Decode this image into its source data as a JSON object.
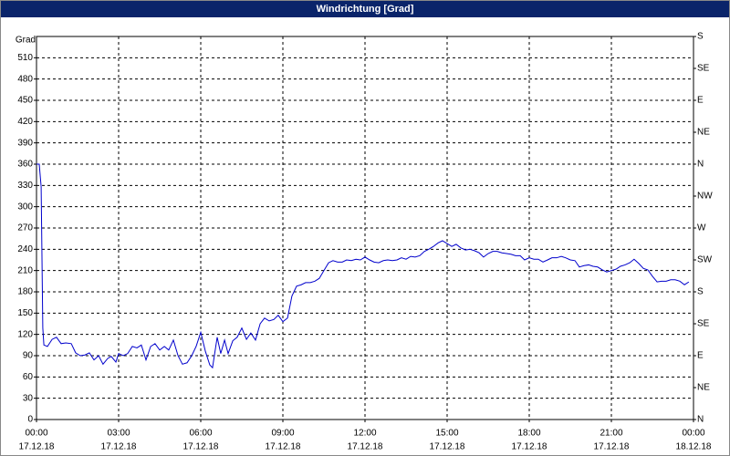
{
  "window_title": "Windrichtung [Grad]",
  "chart_data": {
    "type": "line",
    "y_label": "Grad",
    "xlim": [
      0,
      24
    ],
    "xticks": [
      {
        "value": 0,
        "label": "00:00",
        "date": "17.12.18"
      },
      {
        "value": 3,
        "label": "03:00",
        "date": "17.12.18"
      },
      {
        "value": 6,
        "label": "06:00",
        "date": "17.12.18"
      },
      {
        "value": 9,
        "label": "09:00",
        "date": "17.12.18"
      },
      {
        "value": 12,
        "label": "12:00",
        "date": "17.12.18"
      },
      {
        "value": 15,
        "label": "15:00",
        "date": "17.12.18"
      },
      {
        "value": 18,
        "label": "18:00",
        "date": "17.12.18"
      },
      {
        "value": 21,
        "label": "21:00",
        "date": "17.12.18"
      },
      {
        "value": 24,
        "label": "00:00",
        "date": "18.12.18"
      }
    ],
    "ylim": [
      0,
      540
    ],
    "yticks": [
      0,
      30,
      60,
      90,
      120,
      150,
      180,
      210,
      240,
      270,
      300,
      330,
      360,
      390,
      420,
      450,
      480,
      510
    ],
    "y2lim": [
      0,
      540
    ],
    "y2ticks": [
      {
        "value": 0,
        "label": "N"
      },
      {
        "value": 45,
        "label": "NE"
      },
      {
        "value": 90,
        "label": "E"
      },
      {
        "value": 135,
        "label": "SE"
      },
      {
        "value": 180,
        "label": "S"
      },
      {
        "value": 225,
        "label": "SW"
      },
      {
        "value": 270,
        "label": "W"
      },
      {
        "value": 315,
        "label": "NW"
      },
      {
        "value": 360,
        "label": "N"
      },
      {
        "value": 405,
        "label": "NE"
      },
      {
        "value": 450,
        "label": "E"
      },
      {
        "value": 495,
        "label": "SE"
      },
      {
        "value": 540,
        "label": "S"
      }
    ],
    "grid": true,
    "x": [
      0,
      0.1,
      0.17,
      0.23,
      0.27,
      0.4,
      0.57,
      0.73,
      0.9,
      1.07,
      1.27,
      1.43,
      1.6,
      1.77,
      1.93,
      2.1,
      2.27,
      2.43,
      2.6,
      2.73,
      2.9,
      3,
      3.17,
      3.33,
      3.5,
      3.67,
      3.83,
      4,
      4.17,
      4.33,
      4.5,
      4.67,
      4.83,
      5,
      5.17,
      5.33,
      5.5,
      5.67,
      5.83,
      6,
      6.17,
      6.33,
      6.43,
      6.6,
      6.73,
      6.87,
      7,
      7.17,
      7.33,
      7.5,
      7.67,
      7.83,
      8,
      8.17,
      8.33,
      8.5,
      8.67,
      8.83,
      9,
      9.17,
      9.33,
      9.5,
      9.67,
      9.83,
      10,
      10.17,
      10.33,
      10.5,
      10.67,
      10.83,
      11,
      11.17,
      11.33,
      11.5,
      11.67,
      11.83,
      12,
      12.17,
      12.33,
      12.5,
      12.67,
      12.83,
      13,
      13.17,
      13.33,
      13.5,
      13.67,
      13.83,
      14,
      14.17,
      14.33,
      14.5,
      14.67,
      14.83,
      15,
      15.17,
      15.33,
      15.5,
      15.67,
      15.83,
      16,
      16.17,
      16.33,
      16.5,
      16.67,
      16.83,
      17,
      17.17,
      17.33,
      17.5,
      17.67,
      17.83,
      18,
      18.17,
      18.33,
      18.5,
      18.67,
      18.83,
      19,
      19.17,
      19.33,
      19.5,
      19.67,
      19.83,
      20,
      20.17,
      20.33,
      20.5,
      20.67,
      20.83,
      21,
      21.17,
      21.33,
      21.5,
      21.67,
      21.83,
      22,
      22.17,
      22.33,
      22.5,
      22.67,
      22.83,
      23,
      23.17,
      23.33,
      23.5,
      23.67,
      23.83
    ],
    "series": [
      {
        "color": "#0000cc",
        "values": [
          360,
          360,
          328,
          129,
          105,
          103,
          113,
          116,
          107,
          108,
          107,
          94,
          90,
          91,
          94,
          84,
          90,
          78,
          86,
          89,
          81,
          93,
          90,
          93,
          103,
          101,
          105,
          84,
          103,
          107,
          98,
          103,
          98,
          112,
          90,
          78,
          80,
          90,
          103,
          123,
          96,
          77,
          73,
          116,
          93,
          112,
          93,
          111,
          116,
          129,
          113,
          122,
          112,
          135,
          143,
          139,
          141,
          147,
          138,
          143,
          174,
          188,
          190,
          193,
          193,
          195,
          199,
          210,
          221,
          224,
          222,
          222,
          225,
          224,
          226,
          225,
          229,
          225,
          222,
          221,
          224,
          225,
          224,
          225,
          228,
          226,
          230,
          229,
          231,
          237,
          240,
          244,
          249,
          252,
          248,
          244,
          247,
          242,
          239,
          240,
          238,
          235,
          229,
          234,
          237,
          237,
          235,
          234,
          233,
          231,
          231,
          225,
          228,
          226,
          226,
          222,
          225,
          228,
          228,
          230,
          228,
          225,
          224,
          215,
          217,
          218,
          216,
          215,
          211,
          208,
          210,
          212,
          216,
          218,
          221,
          226,
          220,
          213,
          211,
          202,
          194,
          195,
          195,
          197,
          197,
          195,
          190,
          194
        ]
      }
    ]
  }
}
